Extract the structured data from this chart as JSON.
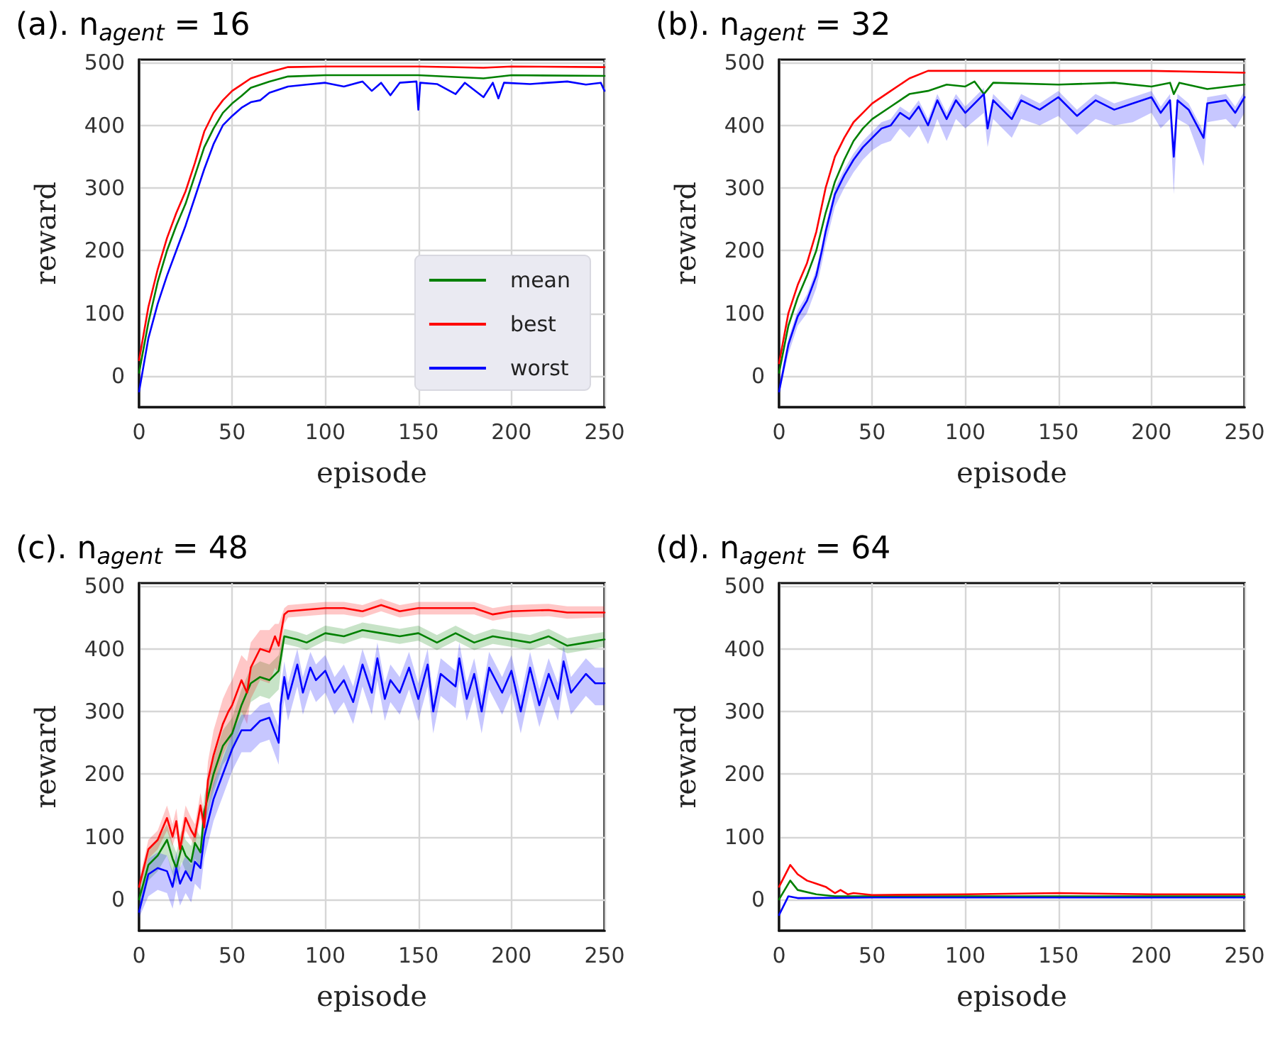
{
  "chart_data": [
    {
      "type": "line",
      "title": "(a). n$_{agent}$ = 16",
      "xlabel": "episode",
      "ylabel": "reward",
      "xlim": [
        0,
        250
      ],
      "xticks": [
        0,
        50,
        100,
        150,
        200,
        250
      ],
      "ylim": [
        -50,
        505
      ],
      "yticks": [
        0,
        100,
        200,
        300,
        400,
        500
      ],
      "grid": true,
      "marker": "none",
      "legend": "bottom right",
      "series": [
        {
          "name": "mean",
          "color": "#008000",
          "x": [
            0,
            5,
            10,
            15,
            20,
            25,
            30,
            35,
            40,
            45,
            50,
            55,
            60,
            70,
            80,
            100,
            150,
            185,
            200,
            250
          ],
          "values": [
            5,
            85,
            150,
            200,
            240,
            275,
            320,
            365,
            395,
            420,
            435,
            447,
            460,
            470,
            478,
            480,
            480,
            475,
            480,
            479
          ]
        },
        {
          "name": "best",
          "color": "#ff0000",
          "x": [
            0,
            5,
            10,
            15,
            20,
            25,
            30,
            35,
            40,
            45,
            50,
            55,
            60,
            70,
            80,
            100,
            150,
            185,
            200,
            250
          ],
          "values": [
            25,
            110,
            170,
            220,
            260,
            295,
            340,
            390,
            420,
            440,
            455,
            465,
            475,
            485,
            493,
            494,
            494,
            492,
            494,
            493
          ]
        },
        {
          "name": "worst",
          "color": "#0000ff",
          "x": [
            0,
            5,
            10,
            15,
            20,
            25,
            30,
            35,
            40,
            45,
            50,
            55,
            60,
            65,
            70,
            80,
            90,
            100,
            110,
            120,
            125,
            130,
            135,
            140,
            149,
            150,
            151,
            160,
            170,
            175,
            185,
            190,
            193,
            196,
            210,
            230,
            240,
            248,
            250
          ],
          "values": [
            -25,
            60,
            115,
            160,
            200,
            240,
            285,
            330,
            370,
            400,
            415,
            428,
            437,
            440,
            452,
            462,
            465,
            468,
            462,
            470,
            455,
            468,
            448,
            468,
            470,
            425,
            468,
            466,
            450,
            468,
            445,
            468,
            443,
            468,
            466,
            470,
            465,
            468,
            455
          ]
        }
      ]
    },
    {
      "type": "line",
      "title": "(b). n$_{agent}$ = 32",
      "xlabel": "episode",
      "ylabel": "reward",
      "xlim": [
        0,
        250
      ],
      "xticks": [
        0,
        50,
        100,
        150,
        200,
        250
      ],
      "ylim": [
        -50,
        505
      ],
      "yticks": [
        0,
        100,
        200,
        300,
        400,
        500
      ],
      "grid": true,
      "marker": "none",
      "series": [
        {
          "color": "#008000",
          "x": [
            0,
            5,
            10,
            15,
            20,
            25,
            30,
            35,
            40,
            45,
            50,
            60,
            70,
            80,
            90,
            100,
            105,
            110,
            115,
            150,
            180,
            200,
            210,
            212,
            215,
            230,
            250
          ],
          "values": [
            5,
            80,
            125,
            160,
            200,
            260,
            310,
            345,
            375,
            395,
            410,
            430,
            450,
            455,
            465,
            462,
            470,
            450,
            468,
            465,
            468,
            462,
            468,
            450,
            468,
            458,
            465
          ]
        },
        {
          "color": "#ff0000",
          "x": [
            0,
            5,
            10,
            15,
            20,
            25,
            30,
            35,
            40,
            45,
            50,
            60,
            70,
            80,
            100,
            150,
            200,
            250
          ],
          "values": [
            20,
            100,
            145,
            180,
            230,
            300,
            350,
            380,
            405,
            420,
            435,
            455,
            475,
            487,
            487,
            487,
            487,
            484
          ]
        },
        {
          "color": "#0000ff",
          "x": [
            0,
            5,
            10,
            15,
            20,
            23,
            25,
            30,
            35,
            40,
            45,
            50,
            55,
            60,
            65,
            70,
            75,
            80,
            85,
            90,
            95,
            100,
            110,
            112,
            115,
            125,
            130,
            140,
            150,
            160,
            170,
            180,
            190,
            200,
            205,
            210,
            212,
            214,
            220,
            228,
            230,
            240,
            245,
            250
          ],
          "values": [
            -25,
            50,
            95,
            120,
            160,
            200,
            230,
            290,
            320,
            345,
            365,
            380,
            395,
            400,
            420,
            410,
            430,
            400,
            440,
            410,
            440,
            420,
            450,
            395,
            440,
            410,
            440,
            425,
            445,
            415,
            440,
            425,
            435,
            445,
            420,
            440,
            350,
            440,
            425,
            380,
            435,
            440,
            420,
            445
          ],
          "lower": [
            -30,
            35,
            80,
            100,
            140,
            180,
            210,
            270,
            300,
            325,
            345,
            360,
            370,
            375,
            395,
            380,
            400,
            370,
            410,
            375,
            410,
            395,
            420,
            365,
            410,
            380,
            410,
            400,
            415,
            385,
            410,
            400,
            405,
            420,
            395,
            410,
            290,
            410,
            400,
            335,
            405,
            410,
            395,
            420
          ],
          "upper": [
            -15,
            60,
            105,
            130,
            170,
            210,
            240,
            300,
            330,
            355,
            375,
            390,
            405,
            410,
            430,
            420,
            440,
            410,
            450,
            420,
            450,
            430,
            460,
            405,
            450,
            420,
            450,
            435,
            455,
            425,
            450,
            435,
            445,
            455,
            430,
            450,
            360,
            450,
            435,
            390,
            445,
            450,
            430,
            455
          ]
        }
      ]
    },
    {
      "type": "line",
      "title": "(c). n$_{agent}$ = 48",
      "xlabel": "episode",
      "ylabel": "reward",
      "xlim": [
        0,
        250
      ],
      "xticks": [
        0,
        50,
        100,
        150,
        200,
        250
      ],
      "ylim": [
        -50,
        505
      ],
      "yticks": [
        0,
        100,
        200,
        300,
        400,
        500
      ],
      "grid": true,
      "marker": "none",
      "series": [
        {
          "color": "#008000",
          "x": [
            0,
            5,
            10,
            15,
            18,
            20,
            23,
            25,
            28,
            30,
            33,
            35,
            40,
            45,
            50,
            55,
            60,
            65,
            70,
            75,
            78,
            85,
            90,
            100,
            110,
            120,
            130,
            140,
            150,
            160,
            170,
            180,
            190,
            200,
            210,
            220,
            230,
            240,
            250
          ],
          "values": [
            0,
            55,
            70,
            95,
            65,
            50,
            85,
            70,
            60,
            90,
            75,
            140,
            200,
            245,
            265,
            310,
            345,
            355,
            350,
            365,
            420,
            415,
            410,
            425,
            420,
            430,
            425,
            420,
            425,
            410,
            425,
            410,
            420,
            415,
            410,
            420,
            405,
            410,
            415
          ],
          "lower": [
            -25,
            30,
            45,
            70,
            40,
            25,
            60,
            45,
            35,
            65,
            50,
            115,
            170,
            215,
            235,
            280,
            315,
            325,
            320,
            335,
            408,
            403,
            398,
            413,
            408,
            418,
            413,
            408,
            413,
            398,
            413,
            398,
            408,
            403,
            398,
            408,
            393,
            398,
            403
          ],
          "upper": [
            25,
            80,
            95,
            120,
            90,
            75,
            110,
            95,
            85,
            115,
            100,
            165,
            225,
            270,
            290,
            335,
            370,
            380,
            375,
            390,
            432,
            427,
            422,
            437,
            432,
            442,
            437,
            432,
            437,
            422,
            437,
            422,
            432,
            427,
            422,
            432,
            417,
            422,
            427
          ]
        },
        {
          "color": "#ff0000",
          "x": [
            0,
            5,
            10,
            15,
            18,
            20,
            22,
            25,
            28,
            30,
            33,
            35,
            37,
            40,
            45,
            48,
            50,
            55,
            58,
            60,
            65,
            70,
            73,
            75,
            78,
            80,
            100,
            110,
            120,
            130,
            140,
            150,
            180,
            190,
            200,
            220,
            230,
            250
          ],
          "values": [
            20,
            80,
            95,
            130,
            100,
            125,
            80,
            130,
            110,
            100,
            150,
            115,
            190,
            230,
            280,
            300,
            310,
            350,
            330,
            370,
            400,
            395,
            420,
            405,
            455,
            460,
            465,
            465,
            460,
            470,
            460,
            465,
            465,
            455,
            460,
            462,
            458,
            458
          ],
          "lower": [
            10,
            65,
            80,
            110,
            85,
            105,
            65,
            110,
            95,
            85,
            130,
            100,
            150,
            180,
            230,
            250,
            260,
            300,
            280,
            320,
            350,
            345,
            370,
            360,
            440,
            450,
            455,
            455,
            450,
            460,
            450,
            455,
            455,
            445,
            450,
            452,
            448,
            450
          ],
          "upper": [
            30,
            95,
            110,
            150,
            120,
            145,
            100,
            150,
            130,
            120,
            170,
            140,
            220,
            270,
            320,
            340,
            350,
            390,
            380,
            410,
            430,
            430,
            440,
            440,
            465,
            470,
            475,
            475,
            470,
            480,
            470,
            475,
            475,
            465,
            470,
            472,
            468,
            468
          ]
        },
        {
          "color": "#0000ff",
          "x": [
            0,
            5,
            10,
            15,
            18,
            20,
            22,
            25,
            28,
            30,
            33,
            35,
            40,
            45,
            50,
            55,
            60,
            65,
            70,
            75,
            76,
            78,
            80,
            85,
            88,
            92,
            95,
            100,
            105,
            110,
            115,
            120,
            125,
            128,
            132,
            135,
            140,
            145,
            150,
            155,
            158,
            162,
            170,
            172,
            176,
            180,
            184,
            188,
            195,
            200,
            205,
            210,
            215,
            220,
            225,
            228,
            232,
            240,
            245,
            250
          ],
          "values": [
            -20,
            40,
            50,
            45,
            20,
            50,
            25,
            45,
            30,
            60,
            50,
            100,
            160,
            200,
            240,
            270,
            270,
            285,
            290,
            250,
            310,
            355,
            320,
            375,
            330,
            370,
            350,
            365,
            330,
            350,
            315,
            375,
            330,
            385,
            320,
            350,
            330,
            370,
            320,
            375,
            300,
            360,
            340,
            385,
            320,
            360,
            300,
            370,
            330,
            365,
            300,
            370,
            310,
            360,
            320,
            380,
            330,
            360,
            345,
            345
          ],
          "lower": [
            -30,
            5,
            15,
            10,
            -15,
            15,
            -10,
            10,
            -5,
            25,
            15,
            65,
            125,
            165,
            205,
            235,
            235,
            250,
            255,
            215,
            275,
            320,
            285,
            340,
            295,
            335,
            315,
            330,
            295,
            315,
            280,
            340,
            295,
            350,
            285,
            315,
            295,
            335,
            285,
            340,
            265,
            325,
            305,
            350,
            285,
            325,
            265,
            335,
            295,
            330,
            265,
            335,
            275,
            325,
            285,
            345,
            295,
            325,
            310,
            310
          ],
          "upper": [
            -10,
            65,
            75,
            70,
            45,
            75,
            50,
            70,
            55,
            85,
            75,
            125,
            185,
            225,
            265,
            295,
            295,
            310,
            315,
            275,
            335,
            380,
            345,
            400,
            355,
            395,
            375,
            390,
            355,
            375,
            340,
            400,
            355,
            410,
            345,
            375,
            355,
            395,
            345,
            400,
            325,
            385,
            365,
            410,
            345,
            385,
            325,
            395,
            355,
            390,
            325,
            395,
            335,
            385,
            345,
            405,
            355,
            385,
            370,
            370
          ]
        }
      ]
    },
    {
      "type": "line",
      "title": "(d). n$_{agent}$ = 64",
      "xlabel": "episode",
      "ylabel": "reward",
      "xlim": [
        0,
        250
      ],
      "xticks": [
        0,
        50,
        100,
        150,
        200,
        250
      ],
      "ylim": [
        -50,
        505
      ],
      "yticks": [
        0,
        100,
        200,
        300,
        400,
        500
      ],
      "grid": true,
      "marker": "none",
      "series": [
        {
          "color": "#008000",
          "x": [
            0,
            6,
            10,
            20,
            30,
            50,
            250
          ],
          "values": [
            0,
            30,
            15,
            8,
            5,
            5,
            5
          ]
        },
        {
          "color": "#ff0000",
          "x": [
            0,
            6,
            10,
            15,
            20,
            25,
            30,
            33,
            37,
            40,
            50,
            100,
            150,
            200,
            250
          ],
          "values": [
            20,
            55,
            40,
            30,
            25,
            20,
            10,
            15,
            8,
            10,
            7,
            8,
            10,
            8,
            8
          ]
        },
        {
          "color": "#0000ff",
          "x": [
            0,
            5,
            10,
            50,
            250
          ],
          "values": [
            -25,
            5,
            2,
            3,
            3
          ]
        }
      ]
    }
  ]
}
